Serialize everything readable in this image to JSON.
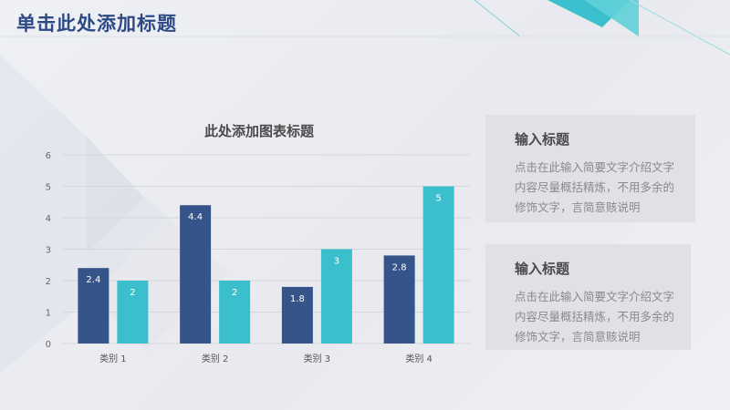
{
  "header": {
    "title": "单击此处添加标题"
  },
  "cards": [
    {
      "title": "输入标题",
      "body": "点击在此输入简要文字介绍文字内容尽量概括精炼，不用多余的修饰文字，言简意赅说明"
    },
    {
      "title": "输入标题",
      "body": "点击在此输入简要文字介绍文字内容尽量概括精炼，不用多余的修饰文字，言简意赅说明"
    }
  ],
  "colors": {
    "series1": "#35548a",
    "series2": "#3bbfcc",
    "title": "#2d4a86",
    "grid": "#d4d6db"
  },
  "chart_data": {
    "type": "bar",
    "title": "此处添加图表标题",
    "categories": [
      "类别 1",
      "类别 2",
      "类别 3",
      "类别 4"
    ],
    "series": [
      {
        "values": [
          2.4,
          4.4,
          1.8,
          2.8
        ]
      },
      {
        "values": [
          2,
          2,
          3,
          5
        ]
      }
    ],
    "y_ticks": [
      "0",
      "1",
      "2",
      "3",
      "4",
      "5",
      "6"
    ],
    "ylim": [
      0,
      6
    ],
    "grid": true,
    "legend": "none"
  }
}
